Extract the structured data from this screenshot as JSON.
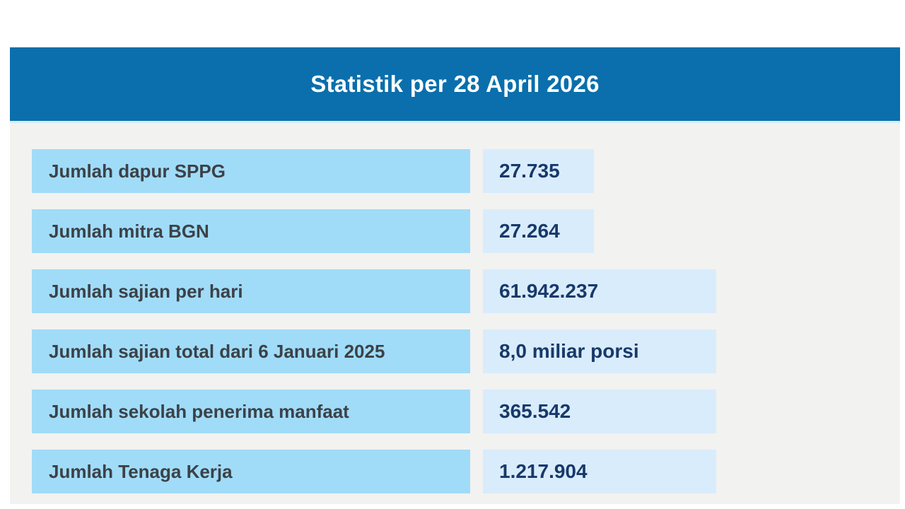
{
  "header": {
    "title": "Statistik per 28 April 2026"
  },
  "stats": {
    "rows": [
      {
        "label": "Jumlah dapur SPPG",
        "value": "27.735",
        "value_size": "narrow"
      },
      {
        "label": "Jumlah mitra BGN",
        "value": "27.264",
        "value_size": "narrow"
      },
      {
        "label": "Jumlah sajian per hari",
        "value": "61.942.237",
        "value_size": "wide"
      },
      {
        "label": "Jumlah sajian total dari 6 Januari 2025",
        "value": "8,0 miliar porsi",
        "value_size": "wide"
      },
      {
        "label": "Jumlah sekolah penerima manfaat",
        "value": "365.542",
        "value_size": "wide"
      },
      {
        "label": "Jumlah Tenaga Kerja",
        "value": "1.217.904",
        "value_size": "wide"
      }
    ]
  },
  "chart_data": {
    "type": "table",
    "title": "Statistik per 28 April 2026",
    "rows": [
      [
        "Jumlah dapur SPPG",
        "27.735"
      ],
      [
        "Jumlah mitra BGN",
        "27.264"
      ],
      [
        "Jumlah sajian per hari",
        "61.942.237"
      ],
      [
        "Jumlah sajian total dari 6 Januari 2025",
        "8,0 miliar porsi"
      ],
      [
        "Jumlah sekolah penerima manfaat",
        "365.542"
      ],
      [
        "Jumlah Tenaga Kerja",
        "1.217.904"
      ]
    ]
  },
  "colors": {
    "page_bg": "#FFFFFF",
    "header_bg": "#0A6FAC",
    "header_text": "#FFFFFF",
    "divider": "#D8ECFA",
    "panel_bg": "#F2F2F1",
    "label_bg": "#A0DCF8",
    "label_text": "#3C4148",
    "value_bg": "#D9ECFB",
    "value_text": "#17396B"
  }
}
